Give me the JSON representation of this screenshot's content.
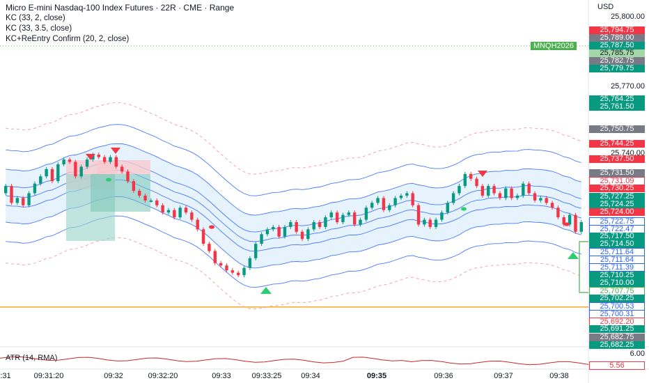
{
  "header": {
    "title": "Micro E-mini Nasdaq-100 Index Futures · 22R · CME · Range",
    "indicators": [
      "KC (33, 2, close)",
      "KC (33, 3.5, close)",
      "KC+ReEntry Confirm (20, 2, close)"
    ],
    "currency": "USD",
    "atr_label": "ATR (14, RMA)"
  },
  "symbol_tag": "MNQH2026",
  "colors": {
    "up": "#089981",
    "down": "#f23645",
    "kc": "#2962ff",
    "band_fill": "#dceefb",
    "orange": "#f5a623"
  },
  "scale_labels": [
    "25,800.00",
    "25,770.00",
    "25,740.00",
    "6.00"
  ],
  "price_tags": [
    {
      "text": "25,794.75",
      "style": "red"
    },
    {
      "text": "25,789.00",
      "style": "gray"
    },
    {
      "text": "25,787.50",
      "style": "green"
    },
    {
      "text": "25,785.75",
      "style": "lightgreen"
    },
    {
      "text": "25,782.75",
      "style": "gray"
    },
    {
      "text": "25,779.75",
      "style": "green"
    },
    {
      "text": "25,764.25",
      "style": "green"
    },
    {
      "text": "25,761.50",
      "style": "green"
    },
    {
      "text": "25,750.75",
      "style": "gray"
    },
    {
      "text": "25,744.25",
      "style": "red"
    },
    {
      "text": "25,737.50",
      "style": "red"
    },
    {
      "text": "25,731.50",
      "style": "gray"
    },
    {
      "text": "25,731.09",
      "style": "outline-red"
    },
    {
      "text": "25,730.25",
      "style": "red"
    },
    {
      "text": "25,727.25",
      "style": "green"
    },
    {
      "text": "25,724.25",
      "style": "green"
    },
    {
      "text": "25,724.00",
      "style": "red"
    },
    {
      "text": "25,722.75",
      "style": "outline-blue"
    },
    {
      "text": "25,722.47",
      "style": "outline-blue"
    },
    {
      "text": "25,717.50",
      "style": "green"
    },
    {
      "text": "25,714.50",
      "style": "green"
    },
    {
      "text": "25,711.64",
      "style": "outline-blue"
    },
    {
      "text": "25,711.64",
      "style": "outline-blue"
    },
    {
      "text": "25,711.39",
      "style": "outline-blue"
    },
    {
      "text": "25,710.25",
      "style": "green"
    },
    {
      "text": "25,710.00",
      "style": "green"
    },
    {
      "text": "25,707.75",
      "style": "outline-green"
    },
    {
      "text": "25,702.25",
      "style": "green"
    },
    {
      "text": "25,700.53",
      "style": "outline-blue"
    },
    {
      "text": "25,700.31",
      "style": "outline-blue"
    },
    {
      "text": "25,692.20",
      "style": "outline-red"
    },
    {
      "text": "25,691.25",
      "style": "green"
    },
    {
      "text": "25,682.75",
      "style": "gray"
    },
    {
      "text": "25,682.25",
      "style": "green"
    },
    {
      "text": "5.56",
      "style": "outline-red"
    }
  ],
  "time_axis": [
    {
      "label": "09:31:20",
      "bold": false
    },
    {
      "label": "09:32",
      "bold": false
    },
    {
      "label": "09:32:20",
      "bold": false
    },
    {
      "label": "09:33",
      "bold": false
    },
    {
      "label": "09:33:25",
      "bold": false
    },
    {
      "label": "09:34",
      "bold": false
    },
    {
      "label": "09:35",
      "bold": true
    },
    {
      "label": "09:36",
      "bold": false
    },
    {
      "label": "09:37",
      "bold": false
    },
    {
      "label": "09:38",
      "bold": false
    }
  ],
  "time_axis_left_fragment": ":31",
  "chart_data": {
    "type": "candlestick",
    "ylim": [
      25670,
      25803
    ],
    "candles_close": [
      25733,
      25726,
      25728,
      25725,
      25730,
      25734,
      25737,
      25740,
      25735,
      25742,
      25744,
      25743,
      25737,
      25741,
      25744,
      25746,
      25745,
      25743,
      25745,
      25741,
      25739,
      25735,
      25731,
      25729,
      25727,
      25727,
      25725,
      25722,
      25723,
      25720,
      25724,
      25722,
      25719,
      25715,
      25709,
      25706,
      25701,
      25700,
      25698,
      25697,
      25696,
      25699,
      25703,
      25709,
      25713,
      25715,
      25716,
      25712,
      25716,
      25718,
      25714,
      25711,
      25715,
      25718,
      25716,
      25720,
      25722,
      25718,
      25721,
      25722,
      25717,
      25719,
      25724,
      25726,
      25728,
      25723,
      25725,
      25728,
      25729,
      25730,
      25725,
      25717,
      25719,
      25716,
      25719,
      25722,
      25726,
      25730,
      25733,
      25738,
      25736,
      25733,
      25729,
      25733,
      25730,
      25728,
      25732,
      25728,
      25729,
      25734,
      25730,
      25727,
      25728,
      25726,
      25724,
      25720,
      25717,
      25721,
      25714,
      25718
    ],
    "kc_inner": {
      "start": 25710,
      "mid_low": 25705,
      "end": 25712
    },
    "kc_outer_dashed": {
      "start": 25690,
      "end": 25695
    },
    "horizontal_level": 25682.75,
    "atr": {
      "label": "ATR (14, RMA)",
      "last": 5.56,
      "scale": 6.0
    },
    "signals": [
      {
        "type": "sell",
        "label": ""
      },
      {
        "type": "sell",
        "label": ""
      },
      {
        "type": "buy",
        "label": ""
      },
      {
        "type": "sell",
        "label": ""
      },
      {
        "type": "buy",
        "label": ""
      }
    ]
  }
}
